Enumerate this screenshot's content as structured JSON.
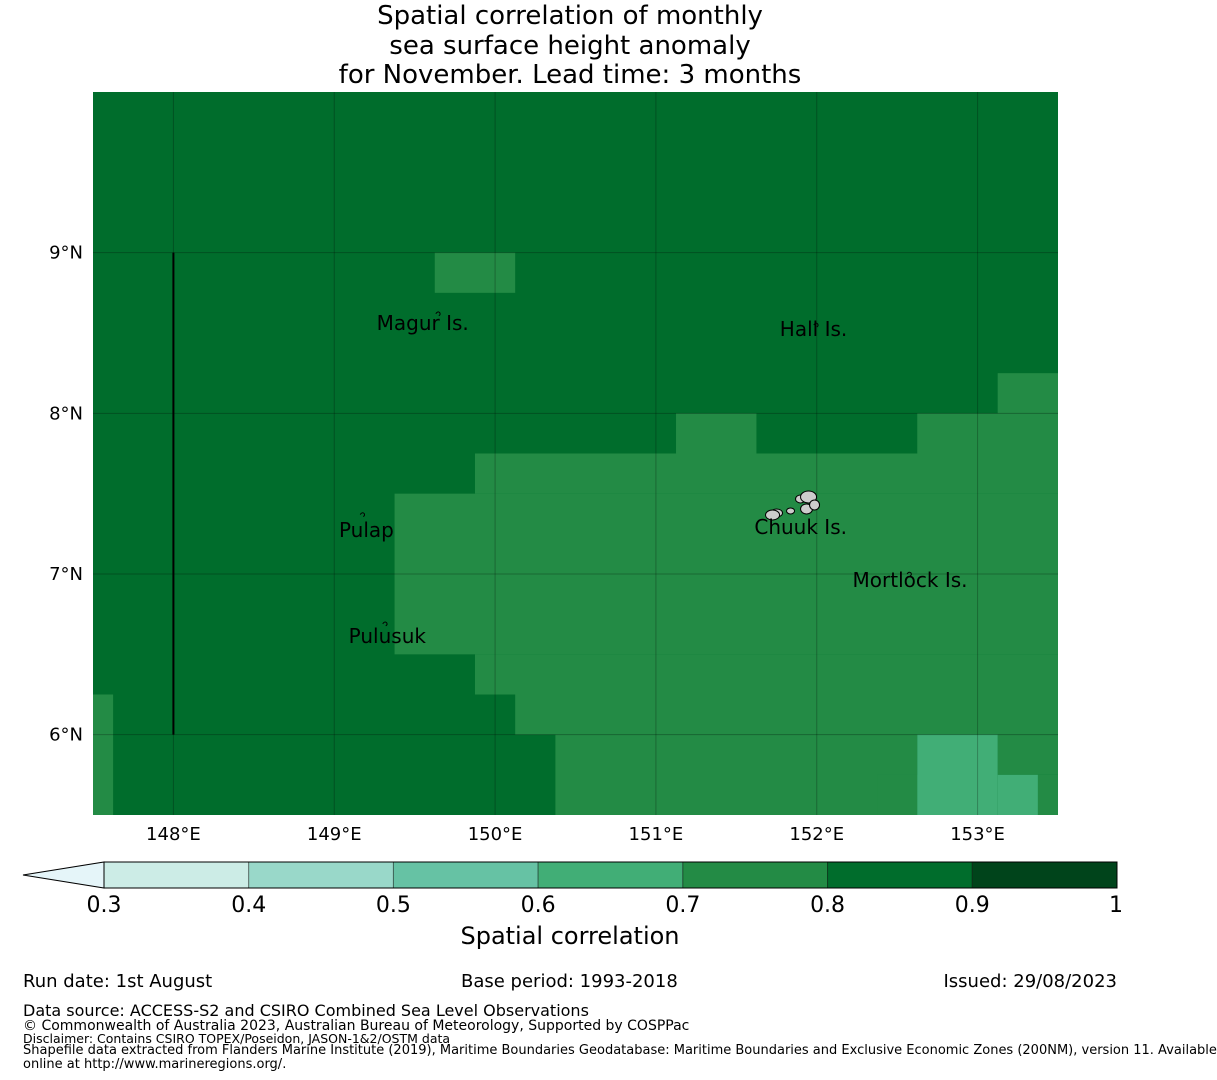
{
  "title": {
    "line1": "Spatial correlation of monthly",
    "line2": "sea surface height anomaly",
    "line3": "for November. Lead time: 3 months"
  },
  "map": {
    "lon_range": [
      147.5,
      153.5
    ],
    "lat_range": [
      5.5,
      10.0
    ],
    "cell_size_deg": 0.25,
    "lon_ticks": [
      {
        "value": 148,
        "label": "148°E"
      },
      {
        "value": 149,
        "label": "149°E"
      },
      {
        "value": 150,
        "label": "150°E"
      },
      {
        "value": 151,
        "label": "151°E"
      },
      {
        "value": 152,
        "label": "152°E"
      },
      {
        "value": 153,
        "label": "153°E"
      }
    ],
    "lat_ticks": [
      {
        "value": 9,
        "label": "9°N"
      },
      {
        "value": 8,
        "label": "8°N"
      },
      {
        "value": 7,
        "label": "7°N"
      },
      {
        "value": 6,
        "label": "6°N"
      }
    ],
    "grid": true,
    "background_class": "0.8-0.9",
    "regions_0.7_0.8": [
      {
        "lon": [
          149.625,
          150.125
        ],
        "lat": [
          8.75,
          9.0
        ]
      },
      {
        "lon": [
          153.125,
          153.5
        ],
        "lat": [
          8.0,
          8.25
        ]
      },
      {
        "lon": [
          151.125,
          151.625
        ],
        "lat": [
          7.75,
          8.0
        ]
      },
      {
        "lon": [
          152.625,
          153.5
        ],
        "lat": [
          7.75,
          8.0
        ]
      },
      {
        "lon": [
          149.875,
          153.5
        ],
        "lat": [
          7.5,
          7.75
        ]
      },
      {
        "lon": [
          149.375,
          153.5
        ],
        "lat": [
          6.5,
          7.5
        ]
      },
      {
        "lon": [
          149.875,
          153.5
        ],
        "lat": [
          6.25,
          6.5
        ]
      },
      {
        "lon": [
          150.125,
          153.5
        ],
        "lat": [
          6.0,
          6.25
        ]
      },
      {
        "lon": [
          150.375,
          152.625
        ],
        "lat": [
          5.5,
          6.0
        ]
      },
      {
        "lon": [
          153.125,
          153.5
        ],
        "lat": [
          5.75,
          6.0
        ]
      },
      {
        "lon": [
          152.375,
          152.625
        ],
        "lat": [
          5.5,
          5.75
        ]
      },
      {
        "lon": [
          153.375,
          153.5
        ],
        "lat": [
          5.5,
          5.75
        ]
      },
      {
        "lon": [
          147.5,
          147.625
        ],
        "lat": [
          5.5,
          6.25
        ]
      }
    ],
    "regions_0.6_0.7": [
      {
        "lon": [
          152.625,
          153.125
        ],
        "lat": [
          5.5,
          6.0
        ]
      },
      {
        "lon": [
          153.125,
          153.375
        ],
        "lat": [
          5.5,
          5.75
        ]
      }
    ],
    "boundary_line": {
      "lon": 148.0,
      "lat": [
        6.0,
        9.0
      ]
    },
    "places": [
      {
        "name": "Magur Is.",
        "lon": 149.55,
        "lat": 8.52,
        "marker_lon": 149.65,
        "marker_lat": 8.62
      },
      {
        "name": "Hall Is.",
        "lon": 151.98,
        "lat": 8.48,
        "marker_lon": 152.0,
        "marker_lat": 8.55
      },
      {
        "name": "Pulap",
        "lon": 149.2,
        "lat": 7.23,
        "marker_lon": 149.18,
        "marker_lat": 7.37
      },
      {
        "name": "Chuuk Is.",
        "lon": 151.9,
        "lat": 7.25,
        "marker_lon": 151.75,
        "marker_lat": 7.38
      },
      {
        "name": "Mortlock Is.",
        "lon": 152.58,
        "lat": 6.92,
        "marker_lon": 152.58,
        "marker_lat": 7.0
      },
      {
        "name": "Pulusuk",
        "lon": 149.33,
        "lat": 6.57,
        "marker_lon": 149.32,
        "marker_lat": 6.69
      }
    ]
  },
  "colorbar": {
    "label": "Spatial correlation",
    "tick_labels": [
      "0.3",
      "0.4",
      "0.5",
      "0.6",
      "0.7",
      "0.8",
      "0.9",
      "1"
    ],
    "extend_color": "#e5f5f9",
    "colors": [
      "#ccece6",
      "#99d8c9",
      "#66c2a4",
      "#41ae76",
      "#238b45",
      "#006d2c",
      "#00441b"
    ]
  },
  "footer": {
    "run_date": "Run date: 1st August",
    "base_period": "Base period: 1993-2018",
    "issued": "Issued: 29/08/2023",
    "data_source": "Data source: ACCESS-S2 and CSIRO Combined Sea Level Observations",
    "copyright": "© Commonwealth of Australia 2023, Australian Bureau of Meteorology, Supported by COSPPac",
    "disclaimer": "Disclaimer: Contains CSIRO TOPEX/Poseidon, JASON-1&2/OSTM data",
    "shapefile_line1": "Shapefile data extracted from Flanders Marine Institute (2019), Maritime Boundaries Geodatabase: Maritime Boundaries and Exclusive Economic Zones (200NM), version 11. Available",
    "shapefile_line2": "online at http://www.marineregions.org/."
  }
}
